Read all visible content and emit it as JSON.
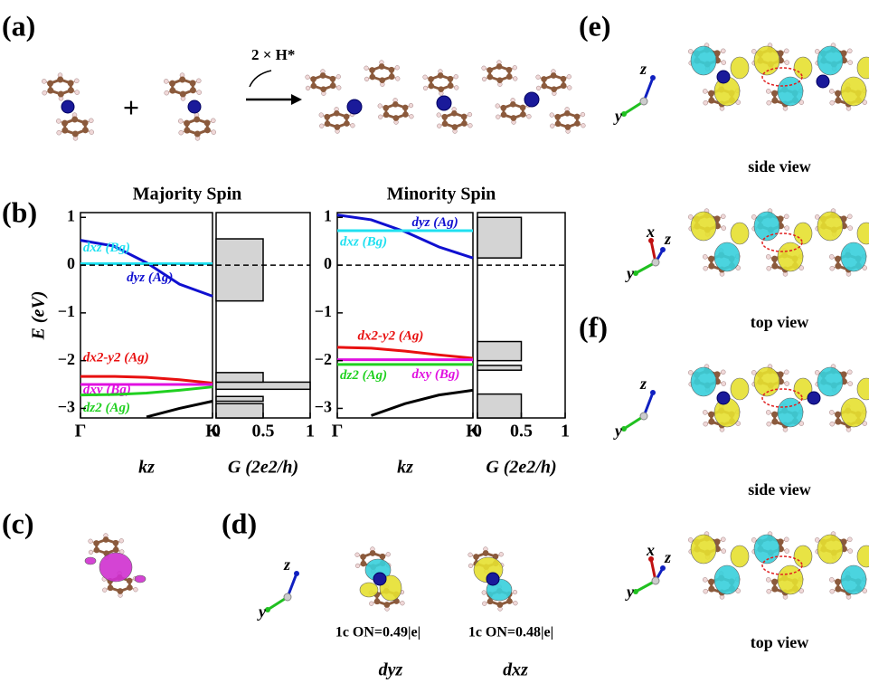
{
  "chart_data": [
    {
      "type": "line",
      "title": "Majority Spin",
      "ylabel": "E (eV)",
      "xlabel": "kz",
      "xlim": [
        0,
        1
      ],
      "ylim": [
        -3.2,
        1.1
      ],
      "xticks": [
        {
          "value": 0,
          "label": "Γ"
        },
        {
          "value": 1,
          "label": "K"
        }
      ],
      "yticks": [
        {
          "value": -3,
          "label": "−3"
        },
        {
          "value": -2,
          "label": "−2"
        },
        {
          "value": -1,
          "label": "−1"
        },
        0,
        1
      ],
      "hline": 0,
      "x": [
        0,
        0.25,
        0.5,
        0.75,
        1
      ],
      "series": [
        {
          "name": "dyz (Ag)",
          "color": "#1010d0",
          "values": [
            0.52,
            0.4,
            0.05,
            -0.4,
            -0.65
          ]
        },
        {
          "name": "dxz (Bg)",
          "color": "#20e0f0",
          "values": [
            0.03,
            0.03,
            0.03,
            0.03,
            0.03
          ]
        },
        {
          "name": "dx2-y2 (Ag)",
          "color": "#e81010",
          "values": [
            -2.33,
            -2.33,
            -2.35,
            -2.4,
            -2.47
          ]
        },
        {
          "name": "dxy (Bg)",
          "color": "#e010e0",
          "values": [
            -2.5,
            -2.5,
            -2.5,
            -2.5,
            -2.5
          ]
        },
        {
          "name": "dz2 (Ag)",
          "color": "#20d020",
          "values": [
            -2.72,
            -2.71,
            -2.68,
            -2.62,
            -2.55
          ]
        },
        {
          "color": "#000000",
          "values": [
            null,
            null,
            -3.18,
            -3.0,
            -2.85
          ]
        }
      ]
    },
    {
      "type": "histogram",
      "xlabel": "G (2e2/h)",
      "xlim": [
        0,
        1
      ],
      "ylim": [
        -3.2,
        1.1
      ],
      "xticks": [
        0,
        0.5,
        1
      ],
      "hline": 0,
      "color": "#d4d4d4",
      "bins": [
        -3.2,
        -2.9,
        -2.85,
        -2.75,
        -2.6,
        -2.45,
        -2.25,
        -0.75,
        0.55,
        1.1
      ],
      "values": [
        0.5,
        0,
        0.5,
        0,
        1,
        0.5,
        0,
        0.5,
        0
      ]
    },
    {
      "type": "line",
      "title": "Minority Spin",
      "xlabel": "kz",
      "xlim": [
        0,
        1
      ],
      "ylim": [
        -3.2,
        1.1
      ],
      "xticks": [
        {
          "value": 0,
          "label": "Γ"
        },
        {
          "value": 1,
          "label": "K"
        }
      ],
      "yticks": [
        {
          "value": -3,
          "label": "−3"
        },
        {
          "value": -2,
          "label": "−2"
        },
        {
          "value": -1,
          "label": "−1"
        },
        0,
        1
      ],
      "hline": 0,
      "x": [
        0,
        0.25,
        0.5,
        0.75,
        1
      ],
      "series": [
        {
          "name": "dyz (Ag)",
          "color": "#1010d0",
          "values": [
            1.05,
            0.95,
            0.7,
            0.38,
            0.15
          ]
        },
        {
          "name": "dxz (Bg)",
          "color": "#20e0f0",
          "values": [
            0.72,
            0.72,
            0.72,
            0.72,
            0.72
          ]
        },
        {
          "name": "dx2-y2 (Ag)",
          "color": "#e81010",
          "values": [
            -1.72,
            -1.74,
            -1.8,
            -1.88,
            -1.95
          ]
        },
        {
          "name": "dxy (Bg)",
          "color": "#e010e0",
          "values": [
            -1.98,
            -1.98,
            -1.98,
            -1.98,
            -1.98
          ]
        },
        {
          "name": "dz2 (Ag)",
          "color": "#20d020",
          "values": [
            -2.08,
            -2.08,
            -2.08,
            -2.08,
            -2.08
          ]
        },
        {
          "color": "#000000",
          "values": [
            null,
            -3.15,
            -2.9,
            -2.72,
            -2.62
          ]
        }
      ]
    },
    {
      "type": "histogram",
      "xlabel": "G (2e2/h)",
      "xlim": [
        0,
        1
      ],
      "ylim": [
        -3.2,
        1.1
      ],
      "xticks": [
        0,
        0.5,
        1
      ],
      "hline": 0,
      "color": "#d4d4d4",
      "bins": [
        -3.2,
        -2.7,
        -2.2,
        -2.1,
        -2.0,
        -1.6,
        0.15,
        1.0,
        1.1
      ],
      "values": [
        0.5,
        0,
        0.5,
        0,
        0.5,
        0,
        0.5,
        0
      ]
    }
  ],
  "figure": {
    "panels": [
      "(a)",
      "(b)",
      "(c)",
      "(d)",
      "(e)",
      "(f)"
    ],
    "reaction": "2 × H*",
    "plus": "+",
    "views": [
      "side view",
      "top view",
      "side view",
      "top view"
    ],
    "occupations": [
      "1c ON=0.49|e|",
      "1c ON=0.48|e|"
    ],
    "orbitals": [
      "dyz",
      "dxz"
    ],
    "axes": [
      [
        "z",
        "y"
      ],
      [
        "x",
        "z",
        "y"
      ],
      [
        "z",
        "y"
      ],
      [
        "x",
        "z",
        "y"
      ],
      [
        "z",
        "y"
      ]
    ]
  }
}
